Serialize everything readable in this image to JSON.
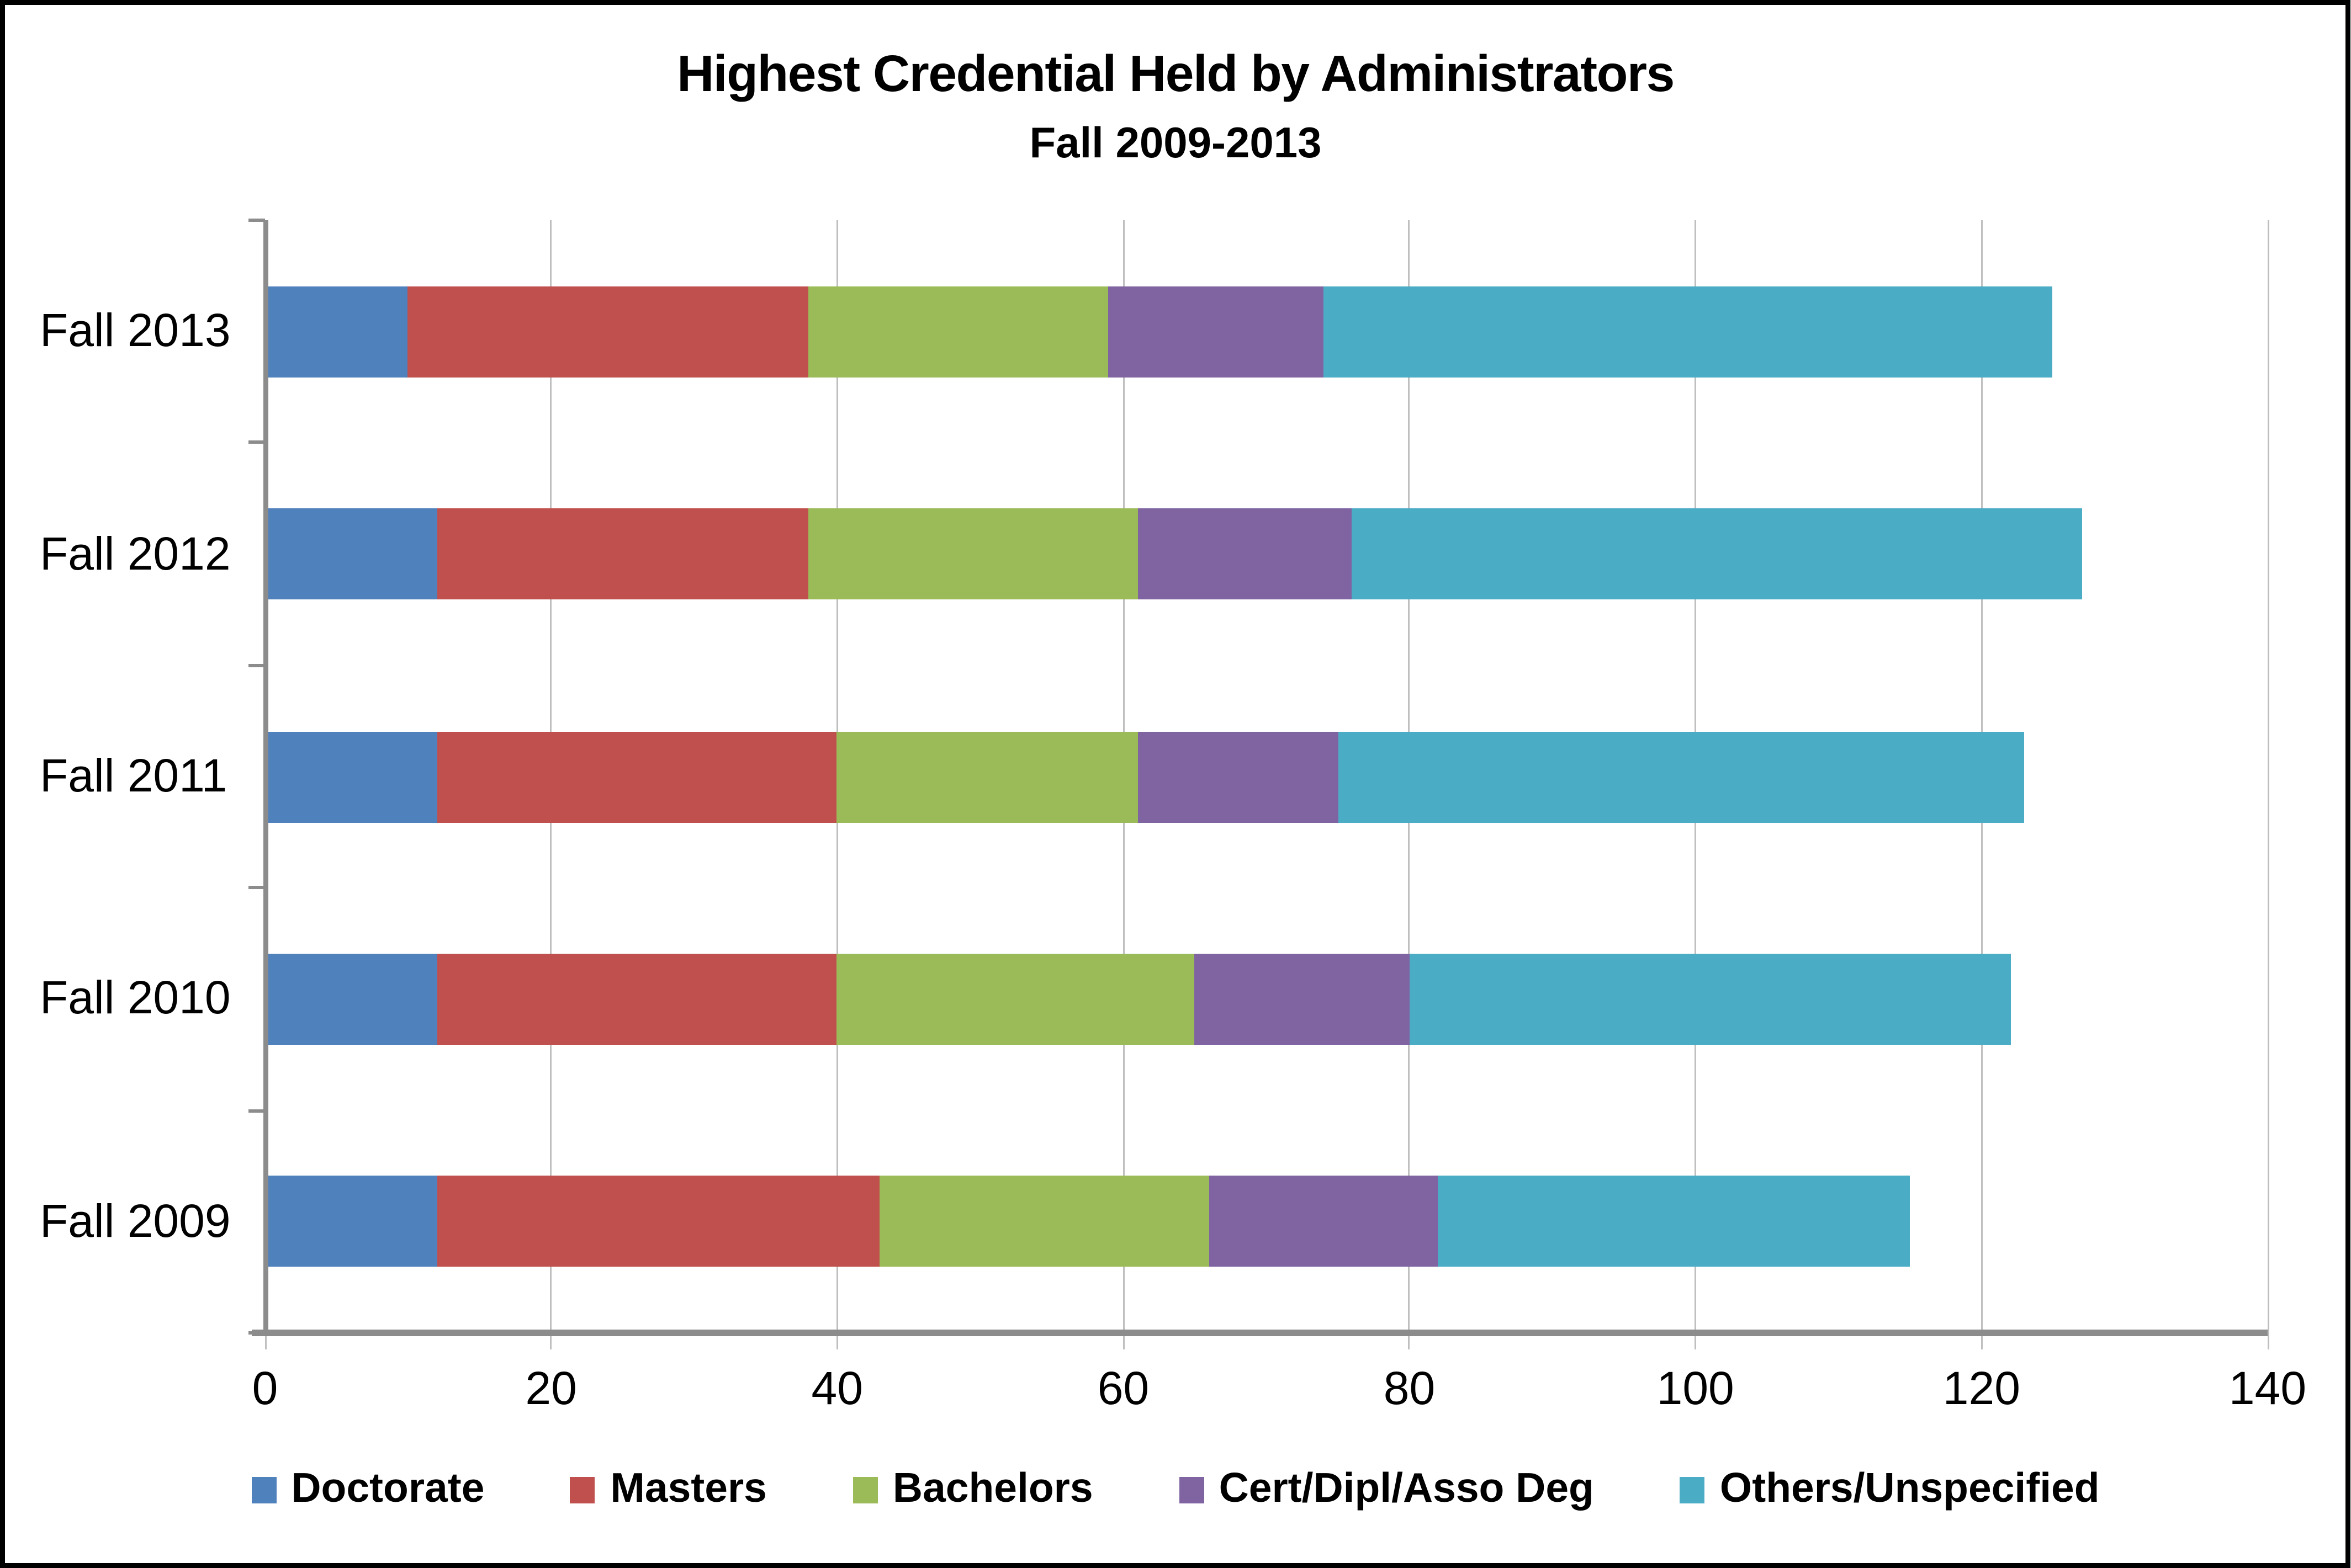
{
  "chart_data": {
    "type": "bar",
    "orientation": "horizontal",
    "stacked": true,
    "title": "Highest Credential Held by Administrators",
    "subtitle": "Fall 2009-2013",
    "categories": [
      "Fall 2013",
      "Fall 2012",
      "Fall 2011",
      "Fall 2010",
      "Fall 2009"
    ],
    "series": [
      {
        "name": "Doctorate",
        "color": "#4F81BD",
        "values": [
          10,
          12,
          12,
          12,
          12
        ]
      },
      {
        "name": "Masters",
        "color": "#C0504D",
        "values": [
          28,
          26,
          28,
          28,
          31
        ]
      },
      {
        "name": "Bachelors",
        "color": "#9BBB59",
        "values": [
          21,
          23,
          21,
          25,
          23
        ]
      },
      {
        "name": "Cert/Dipl/Asso Deg",
        "color": "#8064A2",
        "values": [
          15,
          15,
          14,
          15,
          16
        ]
      },
      {
        "name": "Others/Unspecified",
        "color": "#4BACC6",
        "values": [
          51,
          51,
          48,
          42,
          33
        ]
      }
    ],
    "totals": [
      125,
      127,
      123,
      122,
      115
    ],
    "x_axis": {
      "min": 0,
      "max": 140,
      "tick_step": 20,
      "tick_labels": [
        "0",
        "20",
        "40",
        "60",
        "80",
        "100",
        "120",
        "140"
      ]
    },
    "legend_position": "bottom",
    "grid": true,
    "colors": {
      "gridline": "#BFBFBF",
      "axis_line": "#8C8C8C",
      "text": "#000000",
      "frame_border": "#000000",
      "background": "#FFFFFF"
    }
  }
}
